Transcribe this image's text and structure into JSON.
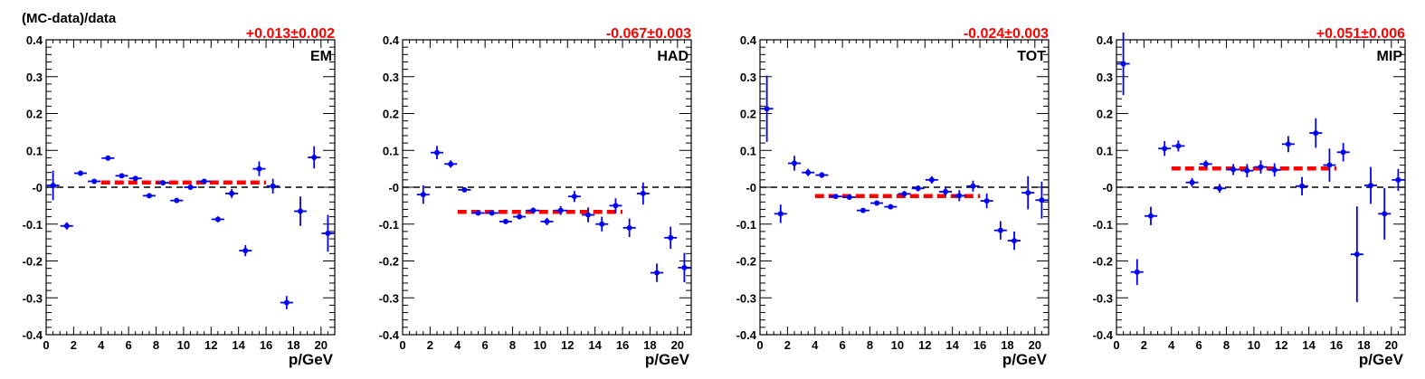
{
  "ylabel": "(MC-data)/data",
  "xlabel": "p/GeV",
  "colors": {
    "points": "#0000ee",
    "fit": "#ff0000",
    "axis": "#000000"
  },
  "chart_data": [
    {
      "type": "scatter",
      "panel_label": "EM",
      "fit_label": "+0.013±0.002",
      "fit": {
        "x": [
          4,
          16
        ],
        "y": 0.013
      },
      "xlim": [
        0,
        21
      ],
      "ylim": [
        -0.4,
        0.4
      ],
      "xticks": [
        "0",
        "2",
        "4",
        "6",
        "8",
        "10",
        "12",
        "14",
        "16",
        "18",
        "20"
      ],
      "yticks": [
        "-0.4",
        "-0.3",
        "-0.2",
        "-0.1",
        "-0",
        "0.1",
        "0.2",
        "0.3",
        "0.4"
      ],
      "points": [
        {
          "x": 0.5,
          "y": 0.005,
          "err": 0.04
        },
        {
          "x": 1.5,
          "y": -0.105,
          "err": 0.01
        },
        {
          "x": 2.5,
          "y": 0.038,
          "err": 0.005
        },
        {
          "x": 3.5,
          "y": 0.016,
          "err": 0.005
        },
        {
          "x": 4.5,
          "y": 0.079,
          "err": 0.005
        },
        {
          "x": 5.5,
          "y": 0.031,
          "err": 0.005
        },
        {
          "x": 6.5,
          "y": 0.024,
          "err": 0.006
        },
        {
          "x": 7.5,
          "y": -0.023,
          "err": 0.005
        },
        {
          "x": 8.5,
          "y": 0.012,
          "err": 0.005
        },
        {
          "x": 9.5,
          "y": -0.036,
          "err": 0.005
        },
        {
          "x": 10.5,
          "y": 0.0,
          "err": 0.006
        },
        {
          "x": 11.5,
          "y": 0.016,
          "err": 0.007
        },
        {
          "x": 12.5,
          "y": -0.087,
          "err": 0.008
        },
        {
          "x": 13.5,
          "y": -0.017,
          "err": 0.012
        },
        {
          "x": 14.5,
          "y": -0.172,
          "err": 0.015
        },
        {
          "x": 15.5,
          "y": 0.05,
          "err": 0.02
        },
        {
          "x": 16.5,
          "y": 0.003,
          "err": 0.02
        },
        {
          "x": 17.5,
          "y": -0.313,
          "err": 0.018
        },
        {
          "x": 18.5,
          "y": -0.065,
          "err": 0.04
        },
        {
          "x": 19.5,
          "y": 0.081,
          "err": 0.03
        },
        {
          "x": 20.5,
          "y": -0.125,
          "err": 0.05
        }
      ]
    },
    {
      "type": "scatter",
      "panel_label": "HAD",
      "fit_label": "-0.067±0.003",
      "fit": {
        "x": [
          4,
          16
        ],
        "y": -0.067
      },
      "xlim": [
        0,
        21
      ],
      "ylim": [
        -0.4,
        0.4
      ],
      "xticks": [
        "0",
        "2",
        "4",
        "6",
        "8",
        "10",
        "12",
        "14",
        "16",
        "18",
        "20"
      ],
      "yticks": [
        "-0.4",
        "-0.3",
        "-0.2",
        "-0.1",
        "-0",
        "0.1",
        "0.2",
        "0.3",
        "0.4"
      ],
      "points": [
        {
          "x": 1.5,
          "y": -0.02,
          "err": 0.025
        },
        {
          "x": 2.5,
          "y": 0.094,
          "err": 0.018
        },
        {
          "x": 3.5,
          "y": 0.063,
          "err": 0.01
        },
        {
          "x": 4.5,
          "y": -0.007,
          "err": 0.005
        },
        {
          "x": 5.5,
          "y": -0.07,
          "err": 0.005
        },
        {
          "x": 6.5,
          "y": -0.07,
          "err": 0.005
        },
        {
          "x": 7.5,
          "y": -0.093,
          "err": 0.005
        },
        {
          "x": 8.5,
          "y": -0.08,
          "err": 0.007
        },
        {
          "x": 9.5,
          "y": -0.063,
          "err": 0.008
        },
        {
          "x": 10.5,
          "y": -0.093,
          "err": 0.01
        },
        {
          "x": 11.5,
          "y": -0.063,
          "err": 0.012
        },
        {
          "x": 12.5,
          "y": -0.025,
          "err": 0.015
        },
        {
          "x": 13.5,
          "y": -0.075,
          "err": 0.02
        },
        {
          "x": 14.5,
          "y": -0.1,
          "err": 0.02
        },
        {
          "x": 15.5,
          "y": -0.05,
          "err": 0.02
        },
        {
          "x": 16.5,
          "y": -0.11,
          "err": 0.025
        },
        {
          "x": 17.5,
          "y": -0.017,
          "err": 0.03
        },
        {
          "x": 18.5,
          "y": -0.232,
          "err": 0.025
        },
        {
          "x": 19.5,
          "y": -0.137,
          "err": 0.03
        },
        {
          "x": 20.5,
          "y": -0.218,
          "err": 0.04
        }
      ]
    },
    {
      "type": "scatter",
      "panel_label": "TOT",
      "fit_label": "-0.024±0.003",
      "fit": {
        "x": [
          4,
          16
        ],
        "y": -0.024
      },
      "xlim": [
        0,
        21
      ],
      "ylim": [
        -0.4,
        0.4
      ],
      "xticks": [
        "0",
        "2",
        "4",
        "6",
        "8",
        "10",
        "12",
        "14",
        "16",
        "18",
        "20"
      ],
      "yticks": [
        "-0.4",
        "-0.3",
        "-0.2",
        "-0.1",
        "-0",
        "0.1",
        "0.2",
        "0.3",
        "0.4"
      ],
      "points": [
        {
          "x": 0.5,
          "y": 0.213,
          "err": 0.09
        },
        {
          "x": 1.5,
          "y": -0.072,
          "err": 0.025
        },
        {
          "x": 2.5,
          "y": 0.065,
          "err": 0.02
        },
        {
          "x": 3.5,
          "y": 0.04,
          "err": 0.01
        },
        {
          "x": 4.5,
          "y": 0.033,
          "err": 0.008
        },
        {
          "x": 5.5,
          "y": -0.025,
          "err": 0.005
        },
        {
          "x": 6.5,
          "y": -0.027,
          "err": 0.005
        },
        {
          "x": 7.5,
          "y": -0.063,
          "err": 0.005
        },
        {
          "x": 8.5,
          "y": -0.043,
          "err": 0.006
        },
        {
          "x": 9.5,
          "y": -0.053,
          "err": 0.007
        },
        {
          "x": 10.5,
          "y": -0.018,
          "err": 0.008
        },
        {
          "x": 11.5,
          "y": -0.003,
          "err": 0.008
        },
        {
          "x": 12.5,
          "y": 0.02,
          "err": 0.01
        },
        {
          "x": 13.5,
          "y": -0.012,
          "err": 0.012
        },
        {
          "x": 14.5,
          "y": -0.023,
          "err": 0.015
        },
        {
          "x": 15.5,
          "y": 0.003,
          "err": 0.015
        },
        {
          "x": 16.5,
          "y": -0.037,
          "err": 0.02
        },
        {
          "x": 17.5,
          "y": -0.117,
          "err": 0.025
        },
        {
          "x": 18.5,
          "y": -0.145,
          "err": 0.025
        },
        {
          "x": 19.5,
          "y": -0.015,
          "err": 0.045
        },
        {
          "x": 20.5,
          "y": -0.035,
          "err": 0.05
        }
      ]
    },
    {
      "type": "scatter",
      "panel_label": "MIP",
      "fit_label": "+0.051±0.006",
      "fit": {
        "x": [
          4,
          16
        ],
        "y": 0.051
      },
      "xlim": [
        0,
        21
      ],
      "ylim": [
        -0.4,
        0.4
      ],
      "xticks": [
        "0",
        "2",
        "4",
        "6",
        "8",
        "10",
        "12",
        "14",
        "16",
        "18",
        "20"
      ],
      "yticks": [
        "-0.4",
        "-0.3",
        "-0.2",
        "-0.1",
        "-0",
        "0.1",
        "0.2",
        "0.3",
        "0.4"
      ],
      "points": [
        {
          "x": 0.5,
          "y": 0.335,
          "err": 0.085
        },
        {
          "x": 1.5,
          "y": -0.23,
          "err": 0.035
        },
        {
          "x": 2.5,
          "y": -0.078,
          "err": 0.025
        },
        {
          "x": 3.5,
          "y": 0.105,
          "err": 0.02
        },
        {
          "x": 4.5,
          "y": 0.112,
          "err": 0.015
        },
        {
          "x": 5.5,
          "y": 0.013,
          "err": 0.012
        },
        {
          "x": 6.5,
          "y": 0.063,
          "err": 0.01
        },
        {
          "x": 7.5,
          "y": -0.003,
          "err": 0.012
        },
        {
          "x": 8.5,
          "y": 0.048,
          "err": 0.015
        },
        {
          "x": 9.5,
          "y": 0.045,
          "err": 0.018
        },
        {
          "x": 10.5,
          "y": 0.055,
          "err": 0.018
        },
        {
          "x": 11.5,
          "y": 0.047,
          "err": 0.018
        },
        {
          "x": 12.5,
          "y": 0.117,
          "err": 0.022
        },
        {
          "x": 13.5,
          "y": 0.003,
          "err": 0.025
        },
        {
          "x": 14.5,
          "y": 0.147,
          "err": 0.04
        },
        {
          "x": 15.5,
          "y": 0.06,
          "err": 0.045
        },
        {
          "x": 16.5,
          "y": 0.095,
          "err": 0.025
        },
        {
          "x": 17.5,
          "y": -0.182,
          "err": 0.13
        },
        {
          "x": 18.5,
          "y": 0.005,
          "err": 0.05
        },
        {
          "x": 19.5,
          "y": -0.072,
          "err": 0.07
        },
        {
          "x": 20.5,
          "y": 0.02,
          "err": 0.03
        }
      ]
    }
  ]
}
